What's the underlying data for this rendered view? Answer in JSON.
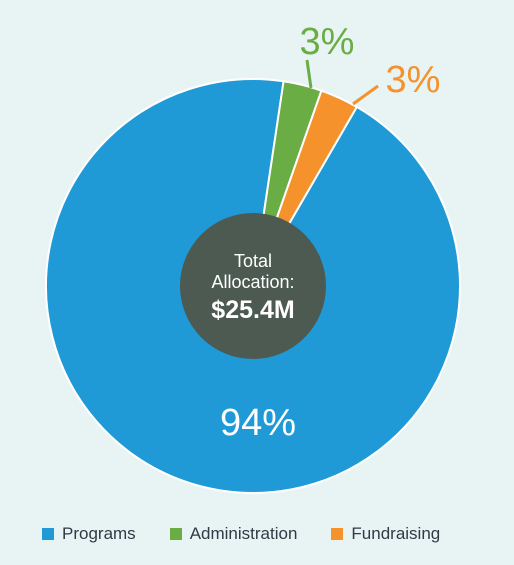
{
  "chart_data": {
    "type": "pie",
    "center_label": {
      "line1": "Total",
      "line2": "Allocation:",
      "value": "$25.4M"
    },
    "slices": [
      {
        "name": "Programs",
        "value": 94,
        "label": "94%",
        "color": "#1f9ad6"
      },
      {
        "name": "Administration",
        "value": 3,
        "label": "3%",
        "color": "#6aad44"
      },
      {
        "name": "Fundraising",
        "value": 3,
        "label": "3%",
        "color": "#f6922c"
      }
    ],
    "legend_position": "bottom",
    "center_color": "#4c5a52",
    "background": "#e8f4f4"
  }
}
